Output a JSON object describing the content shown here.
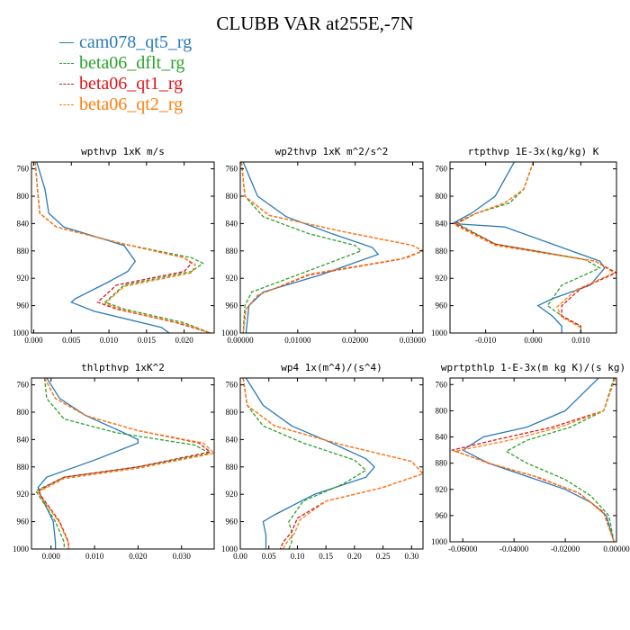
{
  "title": "CLUBB VAR at255E,-7N",
  "legend": [
    {
      "label": "cam078_qt5_rg",
      "color": "#2a7ab8",
      "dash": "solid"
    },
    {
      "label": "beta06_dflt_rg",
      "color": "#2ca02c",
      "dash": "dashed"
    },
    {
      "label": "beta06_qt1_rg",
      "color": "#e0141c",
      "dash": "dashed"
    },
    {
      "label": "beta06_qt2_rg",
      "color": "#ff7f0e",
      "dash": "dashed"
    }
  ],
  "chart_data": [
    {
      "type": "line",
      "title": "wpthvp   1xK m/s",
      "xlim": [
        -0.0003,
        0.024
      ],
      "ylim": [
        1000,
        750
      ],
      "xticks": [
        0,
        0.005,
        0.01,
        0.015,
        0.02
      ],
      "xticklabels": [
        "0.000",
        "0.005",
        "0.010",
        "0.015",
        "0.020"
      ],
      "yticks": [
        760,
        800,
        840,
        880,
        920,
        960,
        1000
      ],
      "series": [
        {
          "name": "cam078_qt5_rg",
          "x": [
            0.0004,
            0.0015,
            0.002,
            0.004,
            0.012,
            0.0135,
            0.0125,
            0.01,
            0.0055,
            0.005,
            0.008,
            0.017,
            0.018
          ],
          "y": [
            750,
            790,
            825,
            845,
            872,
            895,
            910,
            925,
            950,
            955,
            968,
            992,
            1000
          ]
        },
        {
          "name": "beta06_dflt_rg",
          "x": [
            0.0002,
            0.0005,
            0.0008,
            0.003,
            0.012,
            0.021,
            0.0225,
            0.021,
            0.012,
            0.0095,
            0.012,
            0.02,
            0.0235
          ],
          "y": [
            750,
            790,
            825,
            845,
            870,
            890,
            898,
            910,
            930,
            955,
            965,
            985,
            1000
          ]
        },
        {
          "name": "beta06_qt1_rg",
          "x": [
            0.0002,
            0.0005,
            0.0008,
            0.003,
            0.012,
            0.02,
            0.021,
            0.02,
            0.011,
            0.0085,
            0.011,
            0.019,
            0.0235
          ],
          "y": [
            750,
            790,
            825,
            845,
            870,
            890,
            898,
            910,
            930,
            955,
            965,
            985,
            1000
          ]
        },
        {
          "name": "beta06_qt2_rg",
          "x": [
            0.0002,
            0.0005,
            0.0008,
            0.003,
            0.012,
            0.02,
            0.0215,
            0.021,
            0.012,
            0.0095,
            0.012,
            0.02,
            0.0235
          ],
          "y": [
            750,
            790,
            825,
            845,
            870,
            890,
            900,
            912,
            932,
            957,
            967,
            987,
            1000
          ]
        }
      ]
    },
    {
      "type": "line",
      "title": "wp2thvp   1xK m^2/s^2",
      "xlim": [
        0,
        0.0318
      ],
      "ylim": [
        1000,
        750
      ],
      "xticks": [
        0,
        0.01,
        0.02,
        0.03
      ],
      "xticklabels": [
        "0.00000",
        "0.01000",
        "0.02000",
        "0.03000"
      ],
      "yticks": [
        760,
        800,
        840,
        880,
        920,
        960,
        1000
      ],
      "series": [
        {
          "name": "cam078_qt5_rg",
          "x": [
            0.0005,
            0.003,
            0.008,
            0.016,
            0.023,
            0.024,
            0.014,
            0.004,
            0.0015,
            0.001
          ],
          "y": [
            750,
            800,
            830,
            855,
            875,
            885,
            915,
            940,
            960,
            1000
          ]
        },
        {
          "name": "beta06_dflt_rg",
          "x": [
            0.0002,
            0.0008,
            0.004,
            0.012,
            0.02,
            0.021,
            0.01,
            0.002,
            0.0008,
            0.0005
          ],
          "y": [
            750,
            800,
            830,
            855,
            872,
            880,
            915,
            940,
            960,
            1000
          ]
        },
        {
          "name": "beta06_qt1_rg",
          "x": [
            0.0002,
            0.0008,
            0.005,
            0.018,
            0.03,
            0.0318,
            0.028,
            0.012,
            0.003,
            0.001,
            0.0005
          ],
          "y": [
            750,
            800,
            828,
            852,
            872,
            880,
            892,
            915,
            945,
            965,
            1000
          ]
        },
        {
          "name": "beta06_qt2_rg",
          "x": [
            0.0002,
            0.0008,
            0.005,
            0.018,
            0.03,
            0.0318,
            0.029,
            0.012,
            0.003,
            0.001,
            0.0005
          ],
          "y": [
            750,
            800,
            828,
            852,
            872,
            880,
            890,
            914,
            945,
            965,
            1000
          ]
        }
      ]
    },
    {
      "type": "line",
      "title": "rtpthvp   1E-3x(kg/kg) K",
      "xlim": [
        -0.0175,
        0.0175
      ],
      "ylim": [
        1000,
        750
      ],
      "xticks": [
        -0.01,
        0,
        0.01
      ],
      "xticklabels": [
        "-0.010",
        "0.000",
        "0.010"
      ],
      "yticks": [
        760,
        800,
        840,
        880,
        920,
        960,
        1000
      ],
      "series": [
        {
          "name": "cam078_qt5_rg",
          "x": [
            -0.004,
            -0.008,
            -0.013,
            -0.017,
            -0.006,
            0.014,
            0.015,
            0.012,
            0.004,
            0.001,
            0.004,
            0.006,
            0.006
          ],
          "y": [
            750,
            800,
            825,
            840,
            845,
            895,
            905,
            930,
            950,
            960,
            975,
            990,
            1000
          ]
        },
        {
          "name": "beta06_dflt_rg",
          "x": [
            0,
            -0.002,
            -0.005,
            -0.012,
            -0.016,
            -0.008,
            0.011,
            0.014,
            0.006,
            0.003,
            0.006,
            0.01,
            0.01
          ],
          "y": [
            750,
            790,
            810,
            825,
            840,
            870,
            893,
            905,
            930,
            960,
            975,
            990,
            1000
          ]
        },
        {
          "name": "beta06_qt1_rg",
          "x": [
            0,
            -0.002,
            -0.006,
            -0.012,
            -0.0165,
            -0.008,
            0.013,
            0.0175,
            0.01,
            0.006,
            0.006,
            0.01,
            0.01
          ],
          "y": [
            750,
            790,
            810,
            825,
            840,
            870,
            895,
            912,
            935,
            960,
            975,
            990,
            1000
          ]
        },
        {
          "name": "beta06_qt2_rg",
          "x": [
            0,
            -0.002,
            -0.006,
            -0.012,
            -0.0165,
            -0.008,
            0.013,
            0.017,
            0.009,
            0.005,
            0.006,
            0.01,
            0.01
          ],
          "y": [
            750,
            790,
            810,
            825,
            842,
            872,
            895,
            912,
            937,
            962,
            977,
            992,
            1000
          ]
        }
      ]
    },
    {
      "type": "line",
      "title": "thlpthvp   1xK^2",
      "xlim": [
        -0.0045,
        0.0375
      ],
      "ylim": [
        1000,
        750
      ],
      "xticks": [
        0,
        0.01,
        0.02,
        0.03
      ],
      "xticklabels": [
        "0.000",
        "0.010",
        "0.020",
        "0.030"
      ],
      "yticks": [
        760,
        800,
        840,
        880,
        920,
        960,
        1000
      ],
      "series": [
        {
          "name": "cam078_qt5_rg",
          "x": [
            -0.001,
            0.002,
            0.008,
            0.015,
            0.02,
            0.02,
            0.01,
            -0.001,
            -0.003,
            -0.0025,
            0.0005,
            0.001,
            0.001
          ],
          "y": [
            750,
            780,
            805,
            825,
            840,
            845,
            870,
            895,
            910,
            920,
            960,
            990,
            1000
          ]
        },
        {
          "name": "beta06_dflt_rg",
          "x": [
            -0.0015,
            -0.001,
            0.003,
            0.015,
            0.033,
            0.0365,
            0.02,
            0.003,
            -0.0035,
            -0.0025,
            0.001,
            0.003,
            0.003
          ],
          "y": [
            750,
            780,
            810,
            830,
            848,
            860,
            880,
            895,
            915,
            925,
            960,
            990,
            1000
          ]
        },
        {
          "name": "beta06_qt1_rg",
          "x": [
            -0.0015,
            0.001,
            0.008,
            0.02,
            0.034,
            0.0365,
            0.02,
            0.003,
            -0.003,
            -0.002,
            0.002,
            0.004,
            0.004
          ],
          "y": [
            750,
            780,
            805,
            827,
            845,
            858,
            880,
            895,
            915,
            925,
            960,
            990,
            1000
          ]
        },
        {
          "name": "beta06_qt2_rg",
          "x": [
            -0.0015,
            0.001,
            0.008,
            0.02,
            0.035,
            0.0375,
            0.02,
            0.003,
            -0.003,
            -0.002,
            0.002,
            0.004,
            0.004
          ],
          "y": [
            750,
            780,
            805,
            827,
            845,
            860,
            882,
            897,
            917,
            927,
            962,
            992,
            1000
          ]
        }
      ]
    },
    {
      "type": "line",
      "title": "wp4   1x(m^4)/(s^4)",
      "xlim": [
        0,
        0.32
      ],
      "ylim": [
        1000,
        750
      ],
      "xticks": [
        0,
        0.05,
        0.1,
        0.15,
        0.2,
        0.25,
        0.3
      ],
      "xticklabels": [
        "0.00",
        "0.05",
        "0.10",
        "0.15",
        "0.20",
        "0.25",
        "0.30"
      ],
      "yticks": [
        760,
        800,
        840,
        880,
        920,
        960,
        1000
      ],
      "series": [
        {
          "name": "cam078_qt5_rg",
          "x": [
            0.01,
            0.04,
            0.09,
            0.16,
            0.22,
            0.235,
            0.22,
            0.13,
            0.06,
            0.04,
            0.045,
            0.045,
            0.045
          ],
          "y": [
            750,
            790,
            820,
            845,
            868,
            880,
            895,
            920,
            950,
            960,
            980,
            995,
            1000
          ]
        },
        {
          "name": "beta06_dflt_rg",
          "x": [
            0.005,
            0.012,
            0.04,
            0.11,
            0.2,
            0.22,
            0.18,
            0.11,
            0.085,
            0.09,
            0.09,
            0.085
          ],
          "y": [
            750,
            790,
            820,
            845,
            870,
            885,
            905,
            930,
            960,
            975,
            990,
            1000
          ]
        },
        {
          "name": "beta06_qt1_rg",
          "x": [
            0.005,
            0.012,
            0.06,
            0.18,
            0.3,
            0.32,
            0.25,
            0.15,
            0.1,
            0.09,
            0.075,
            0.07
          ],
          "y": [
            750,
            790,
            820,
            848,
            872,
            890,
            910,
            930,
            955,
            975,
            990,
            1000
          ]
        },
        {
          "name": "beta06_qt2_rg",
          "x": [
            0.005,
            0.012,
            0.06,
            0.18,
            0.3,
            0.32,
            0.25,
            0.15,
            0.105,
            0.095,
            0.08,
            0.075
          ],
          "y": [
            750,
            790,
            820,
            848,
            872,
            890,
            910,
            930,
            957,
            977,
            992,
            1000
          ]
        }
      ]
    },
    {
      "type": "line",
      "title": "wprtpthlp   1-E-3x(m kg K)/(s kg)",
      "xlim": [
        -0.065,
        0
      ],
      "ylim": [
        1000,
        750
      ],
      "xticks": [
        -0.06,
        -0.04,
        -0.02,
        0
      ],
      "xticklabels": [
        "-0.06000",
        "-0.04000",
        "-0.02000",
        "0.00000"
      ],
      "yticks": [
        760,
        800,
        840,
        880,
        920,
        960,
        1000
      ],
      "series": [
        {
          "name": "cam078_qt5_rg",
          "x": [
            -0.007,
            -0.02,
            -0.035,
            -0.052,
            -0.06,
            -0.05,
            -0.035,
            -0.02,
            -0.01,
            -0.004,
            -0.001
          ],
          "y": [
            750,
            800,
            825,
            840,
            860,
            880,
            900,
            920,
            940,
            960,
            1000
          ]
        },
        {
          "name": "beta06_dflt_rg",
          "x": [
            -0.001,
            -0.005,
            -0.018,
            -0.035,
            -0.043,
            -0.035,
            -0.02,
            -0.01,
            -0.003,
            -0.001
          ],
          "y": [
            750,
            800,
            825,
            845,
            862,
            880,
            905,
            930,
            960,
            1000
          ]
        },
        {
          "name": "beta06_qt1_rg",
          "x": [
            -0.0005,
            -0.005,
            -0.025,
            -0.048,
            -0.064,
            -0.05,
            -0.032,
            -0.015,
            -0.005,
            -0.001
          ],
          "y": [
            750,
            800,
            825,
            845,
            860,
            880,
            900,
            925,
            955,
            1000
          ]
        },
        {
          "name": "beta06_qt2_rg",
          "x": [
            -0.0005,
            -0.005,
            -0.022,
            -0.042,
            -0.063,
            -0.048,
            -0.03,
            -0.014,
            -0.005,
            -0.001
          ],
          "y": [
            750,
            800,
            825,
            845,
            862,
            882,
            902,
            927,
            957,
            1000
          ]
        }
      ]
    }
  ]
}
